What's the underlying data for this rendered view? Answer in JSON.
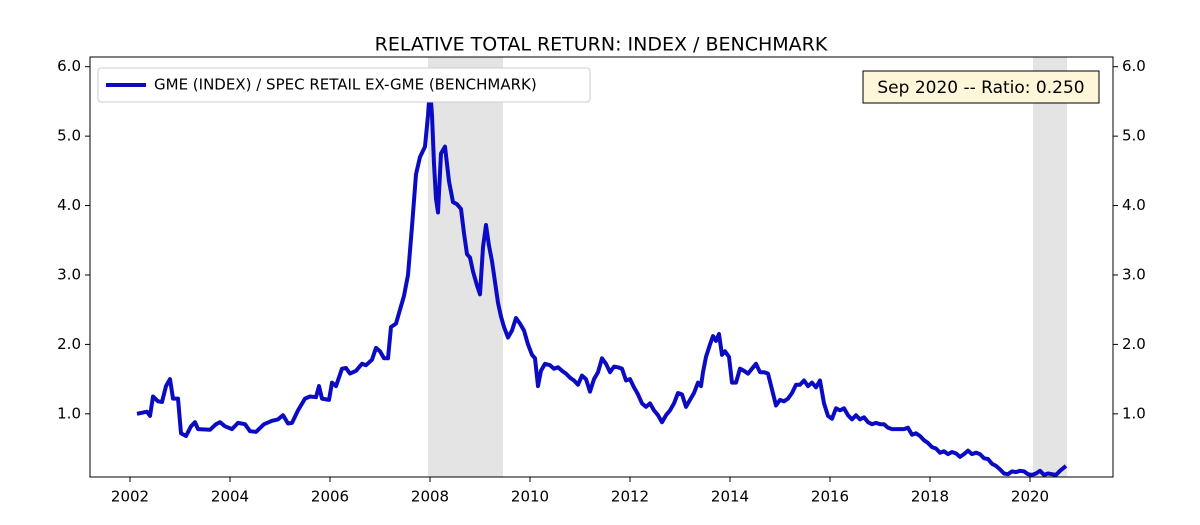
{
  "chart_data": {
    "type": "line",
    "title": "RELATIVE TOTAL RETURN: INDEX / BENCHMARK",
    "annotation": "Sep 2020 -- Ratio: 0.250",
    "x": [
      2002.14,
      2002.34,
      2002.4,
      2002.46,
      2002.56,
      2002.64,
      2002.72,
      2002.8,
      2002.86,
      2002.96,
      2003.02,
      2003.12,
      2003.22,
      2003.3,
      2003.36,
      2003.6,
      2003.72,
      2003.8,
      2003.9,
      2004.04,
      2004.16,
      2004.3,
      2004.4,
      2004.52,
      2004.68,
      2004.84,
      2004.96,
      2005.06,
      2005.16,
      2005.24,
      2005.36,
      2005.5,
      2005.6,
      2005.72,
      2005.78,
      2005.84,
      2005.98,
      2006.04,
      2006.12,
      2006.24,
      2006.32,
      2006.4,
      2006.52,
      2006.64,
      2006.72,
      2006.84,
      2006.92,
      2007.0,
      2007.08,
      2007.16,
      2007.22,
      2007.32,
      2007.4,
      2007.48,
      2007.56,
      2007.64,
      2007.72,
      2007.8,
      2007.9,
      2007.96,
      2008.0,
      2008.04,
      2008.08,
      2008.12,
      2008.16,
      2008.22,
      2008.3,
      2008.38,
      2008.46,
      2008.54,
      2008.62,
      2008.68,
      2008.74,
      2008.8,
      2008.86,
      2008.94,
      2009.0,
      2009.06,
      2009.12,
      2009.18,
      2009.24,
      2009.3,
      2009.36,
      2009.42,
      2009.48,
      2009.56,
      2009.64,
      2009.72,
      2009.8,
      2009.88,
      2009.96,
      2010.04,
      2010.1,
      2010.16,
      2010.22,
      2010.3,
      2010.4,
      2010.48,
      2010.56,
      2010.64,
      2010.72,
      2010.8,
      2010.88,
      2010.96,
      2011.04,
      2011.12,
      2011.2,
      2011.28,
      2011.36,
      2011.44,
      2011.52,
      2011.6,
      2011.68,
      2011.76,
      2011.84,
      2011.92,
      2012.0,
      2012.08,
      2012.16,
      2012.24,
      2012.32,
      2012.4,
      2012.48,
      2012.56,
      2012.64,
      2012.72,
      2012.8,
      2012.88,
      2012.96,
      2013.04,
      2013.12,
      2013.2,
      2013.28,
      2013.36,
      2013.42,
      2013.46,
      2013.52,
      2013.6,
      2013.66,
      2013.72,
      2013.78,
      2013.84,
      2013.9,
      2013.98,
      2014.04,
      2014.12,
      2014.2,
      2014.28,
      2014.36,
      2014.44,
      2014.52,
      2014.6,
      2014.68,
      2014.76,
      2014.84,
      2014.92,
      2015.0,
      2015.08,
      2015.16,
      2015.24,
      2015.32,
      2015.4,
      2015.48,
      2015.56,
      2015.64,
      2015.72,
      2015.8,
      2015.88,
      2015.96,
      2016.04,
      2016.12,
      2016.2,
      2016.28,
      2016.36,
      2016.44,
      2016.52,
      2016.6,
      2016.68,
      2016.76,
      2016.84,
      2016.92,
      2017.0,
      2017.08,
      2017.16,
      2017.24,
      2017.32,
      2017.4,
      2017.48,
      2017.56,
      2017.64,
      2017.72,
      2017.8,
      2017.88,
      2017.96,
      2018.04,
      2018.12,
      2018.2,
      2018.28,
      2018.36,
      2018.44,
      2018.52,
      2018.6,
      2018.68,
      2018.76,
      2018.84,
      2018.92,
      2019.0,
      2019.08,
      2019.16,
      2019.24,
      2019.32,
      2019.4,
      2019.48,
      2019.56,
      2019.64,
      2019.72,
      2019.8,
      2019.88,
      2019.96,
      2020.04,
      2020.12,
      2020.2,
      2020.28,
      2020.36,
      2020.44,
      2020.52,
      2020.6,
      2020.72
    ],
    "series": [
      {
        "name": "GME (INDEX) / SPEC RETAIL EX-GME (BENCHMARK)",
        "color": "#0b0bc4",
        "values": [
          1.0,
          1.03,
          0.97,
          1.25,
          1.18,
          1.17,
          1.4,
          1.5,
          1.22,
          1.22,
          0.72,
          0.68,
          0.82,
          0.88,
          0.78,
          0.77,
          0.85,
          0.88,
          0.82,
          0.78,
          0.87,
          0.85,
          0.75,
          0.74,
          0.85,
          0.9,
          0.92,
          0.98,
          0.86,
          0.87,
          1.05,
          1.22,
          1.25,
          1.24,
          1.4,
          1.22,
          1.2,
          1.45,
          1.4,
          1.65,
          1.66,
          1.58,
          1.62,
          1.72,
          1.7,
          1.78,
          1.95,
          1.9,
          1.8,
          1.8,
          2.25,
          2.3,
          2.5,
          2.7,
          3.0,
          3.7,
          4.45,
          4.7,
          4.85,
          5.3,
          5.7,
          5.3,
          4.6,
          4.1,
          3.9,
          4.75,
          4.85,
          4.35,
          4.05,
          4.02,
          3.95,
          3.6,
          3.3,
          3.25,
          3.05,
          2.85,
          2.72,
          3.4,
          3.72,
          3.42,
          3.2,
          2.9,
          2.6,
          2.4,
          2.25,
          2.1,
          2.2,
          2.38,
          2.3,
          2.2,
          2.0,
          1.85,
          1.8,
          1.4,
          1.62,
          1.72,
          1.7,
          1.65,
          1.67,
          1.62,
          1.58,
          1.52,
          1.48,
          1.42,
          1.55,
          1.5,
          1.32,
          1.5,
          1.6,
          1.8,
          1.72,
          1.6,
          1.68,
          1.67,
          1.65,
          1.48,
          1.5,
          1.38,
          1.28,
          1.15,
          1.1,
          1.15,
          1.05,
          0.98,
          0.88,
          0.98,
          1.05,
          1.15,
          1.3,
          1.28,
          1.1,
          1.2,
          1.3,
          1.45,
          1.4,
          1.6,
          1.82,
          2.0,
          2.12,
          2.05,
          2.15,
          1.85,
          1.9,
          1.82,
          1.45,
          1.45,
          1.65,
          1.62,
          1.58,
          1.65,
          1.72,
          1.6,
          1.6,
          1.58,
          1.35,
          1.12,
          1.2,
          1.18,
          1.22,
          1.3,
          1.42,
          1.42,
          1.48,
          1.4,
          1.45,
          1.38,
          1.48,
          1.15,
          0.97,
          0.93,
          1.08,
          1.05,
          1.08,
          0.98,
          0.92,
          0.98,
          0.92,
          0.95,
          0.88,
          0.85,
          0.87,
          0.85,
          0.85,
          0.8,
          0.78,
          0.78,
          0.78,
          0.78,
          0.8,
          0.7,
          0.72,
          0.68,
          0.62,
          0.58,
          0.52,
          0.5,
          0.44,
          0.46,
          0.42,
          0.45,
          0.43,
          0.38,
          0.42,
          0.47,
          0.42,
          0.44,
          0.42,
          0.36,
          0.35,
          0.28,
          0.25,
          0.2,
          0.14,
          0.13,
          0.17,
          0.16,
          0.18,
          0.17,
          0.13,
          0.12,
          0.14,
          0.18,
          0.12,
          0.14,
          0.13,
          0.12,
          0.18,
          0.25
        ]
      }
    ],
    "shaded_regions": [
      [
        2007.96,
        2009.46
      ],
      [
        2020.06,
        2020.74
      ]
    ],
    "xlim": [
      2001.2,
      2021.66
    ],
    "xticks": [
      2002,
      2004,
      2006,
      2008,
      2010,
      2012,
      2014,
      2016,
      2018,
      2020
    ],
    "ylim": [
      0.09,
      6.14
    ],
    "yticks": [
      {
        "value": 1,
        "label": "1.0"
      },
      {
        "value": 2,
        "label": "2.0"
      },
      {
        "value": 3,
        "label": "3.0"
      },
      {
        "value": 4,
        "label": "4.0"
      },
      {
        "value": 5,
        "label": "5.0"
      },
      {
        "value": 6,
        "label": "6.0"
      }
    ]
  }
}
